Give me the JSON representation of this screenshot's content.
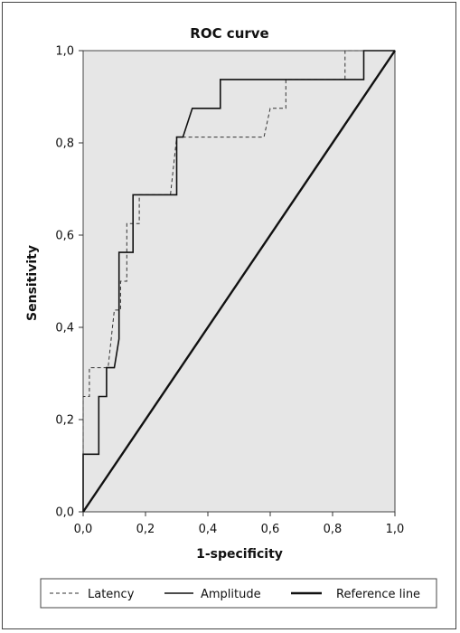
{
  "chart_data": {
    "type": "line",
    "title": "ROC curve",
    "xlabel": "1-specificity",
    "ylabel": "Sensitivity",
    "xlim": [
      0,
      1
    ],
    "ylim": [
      0,
      1
    ],
    "x_ticks": [
      "0,0",
      "0,2",
      "0,4",
      "0,6",
      "0,8",
      "1,0"
    ],
    "y_ticks": [
      "0,0",
      "0,2",
      "0,4",
      "0,6",
      "0,8",
      "1,0"
    ],
    "grid": false,
    "legend_position": "bottom",
    "plot_background": "#e6e6e6",
    "series": [
      {
        "name": "Latency",
        "style": "dashed",
        "color": "#333333",
        "points": [
          [
            0.0,
            0.0
          ],
          [
            0.0,
            0.25
          ],
          [
            0.02,
            0.25
          ],
          [
            0.02,
            0.3125
          ],
          [
            0.08,
            0.3125
          ],
          [
            0.1,
            0.4375
          ],
          [
            0.12,
            0.4375
          ],
          [
            0.12,
            0.5
          ],
          [
            0.14,
            0.5
          ],
          [
            0.14,
            0.625
          ],
          [
            0.18,
            0.625
          ],
          [
            0.18,
            0.6875
          ],
          [
            0.28,
            0.6875
          ],
          [
            0.3,
            0.8125
          ],
          [
            0.58,
            0.8125
          ],
          [
            0.6,
            0.875
          ],
          [
            0.65,
            0.875
          ],
          [
            0.65,
            0.9375
          ],
          [
            0.84,
            0.9375
          ],
          [
            0.84,
            1.0
          ],
          [
            1.0,
            1.0
          ]
        ]
      },
      {
        "name": "Amplitude",
        "style": "solid",
        "color": "#111111",
        "points": [
          [
            0.0,
            0.0
          ],
          [
            0.0,
            0.125
          ],
          [
            0.05,
            0.125
          ],
          [
            0.05,
            0.25
          ],
          [
            0.075,
            0.25
          ],
          [
            0.075,
            0.3125
          ],
          [
            0.1,
            0.3125
          ],
          [
            0.115,
            0.375
          ],
          [
            0.115,
            0.5625
          ],
          [
            0.16,
            0.5625
          ],
          [
            0.16,
            0.6875
          ],
          [
            0.3,
            0.6875
          ],
          [
            0.3,
            0.8125
          ],
          [
            0.32,
            0.8125
          ],
          [
            0.35,
            0.875
          ],
          [
            0.44,
            0.875
          ],
          [
            0.44,
            0.9375
          ],
          [
            0.9,
            0.9375
          ],
          [
            0.9,
            1.0
          ],
          [
            1.0,
            1.0
          ]
        ]
      },
      {
        "name": "Reference line",
        "style": "solid-thick",
        "color": "#111111",
        "points": [
          [
            0,
            0
          ],
          [
            1,
            1
          ]
        ]
      }
    ]
  }
}
